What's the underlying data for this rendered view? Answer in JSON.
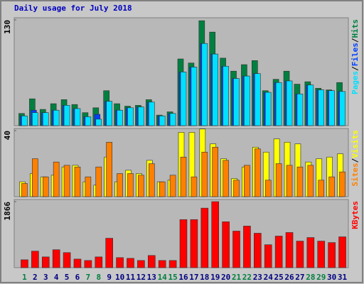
{
  "chart_data": [
    {
      "type": "bar",
      "title": "Daily usage for July 2018",
      "ylim": [
        0,
        130
      ],
      "yticks": [
        130
      ],
      "legend_separator": "/",
      "series": [
        {
          "name": "Hits",
          "color": "#008040",
          "values": [
            15,
            33,
            20,
            27,
            32,
            26,
            16,
            22,
            43,
            27,
            24,
            25,
            32,
            13,
            17,
            82,
            77,
            129,
            115,
            83,
            67,
            75,
            80,
            43,
            57,
            67,
            51,
            54,
            46,
            44,
            53
          ]
        },
        {
          "name": "Files",
          "color": "#0040ff",
          "values": [
            12,
            19,
            16,
            19,
            25,
            21,
            11,
            14,
            30,
            19,
            22,
            23,
            29,
            12,
            15,
            66,
            72,
            101,
            88,
            73,
            58,
            61,
            64,
            41,
            53,
            55,
            39,
            50,
            44,
            43,
            42
          ]
        },
        {
          "name": "Pages",
          "color": "#00e0ff",
          "values": [
            12,
            16,
            16,
            19,
            25,
            21,
            11,
            8,
            30,
            19,
            22,
            23,
            29,
            12,
            15,
            66,
            72,
            101,
            88,
            73,
            58,
            61,
            64,
            41,
            53,
            55,
            39,
            50,
            44,
            43,
            42
          ]
        }
      ]
    },
    {
      "type": "bar",
      "ylim": [
        0,
        40
      ],
      "yticks": [
        40
      ],
      "legend_separator": "/",
      "series": [
        {
          "name": "Visits",
          "color": "#ffff00",
          "values": [
            9,
            14,
            12,
            13,
            18,
            19,
            9,
            7,
            24,
            9,
            16,
            14,
            22,
            9,
            10,
            39,
            39,
            41,
            32,
            23,
            11,
            18,
            30,
            27,
            35,
            33,
            32,
            21,
            23,
            24,
            26
          ]
        },
        {
          "name": "Sites",
          "color": "#ff8000",
          "values": [
            8,
            23,
            12,
            21,
            19,
            18,
            12,
            18,
            33,
            14,
            14,
            13,
            20,
            9,
            13,
            24,
            12,
            27,
            30,
            22,
            10,
            19,
            29,
            10,
            20,
            19,
            18,
            19,
            10,
            12,
            15
          ]
        }
      ]
    },
    {
      "type": "bar",
      "ylim": [
        0,
        1866
      ],
      "yticks": [
        1866
      ],
      "categories": [
        "1",
        "2",
        "3",
        "4",
        "5",
        "6",
        "7",
        "8",
        "9",
        "10",
        "11",
        "12",
        "13",
        "14",
        "15",
        "16",
        "17",
        "18",
        "19",
        "20",
        "21",
        "22",
        "23",
        "24",
        "25",
        "26",
        "27",
        "28",
        "29",
        "30",
        "31"
      ],
      "category_label_colors": [
        "#008040",
        "#000080",
        "#000080",
        "#000080",
        "#000080",
        "#000080",
        "#008040",
        "#008040",
        "#000080",
        "#000080",
        "#000080",
        "#000080",
        "#000080",
        "#008040",
        "#008040",
        "#000080",
        "#000080",
        "#000080",
        "#000080",
        "#000080",
        "#008040",
        "#008040",
        "#000080",
        "#000080",
        "#000080",
        "#000080",
        "#000080",
        "#008040",
        "#008040",
        "#000080",
        "#000080"
      ],
      "series": [
        {
          "name": "KBytes",
          "color": "#ff0000",
          "values": [
            223,
            467,
            304,
            507,
            426,
            243,
            203,
            304,
            832,
            284,
            264,
            203,
            345,
            203,
            203,
            1359,
            1359,
            1683,
            1866,
            1298,
            1034,
            1176,
            974,
            649,
            893,
            994,
            751,
            852,
            751,
            710,
            872
          ]
        }
      ]
    }
  ]
}
